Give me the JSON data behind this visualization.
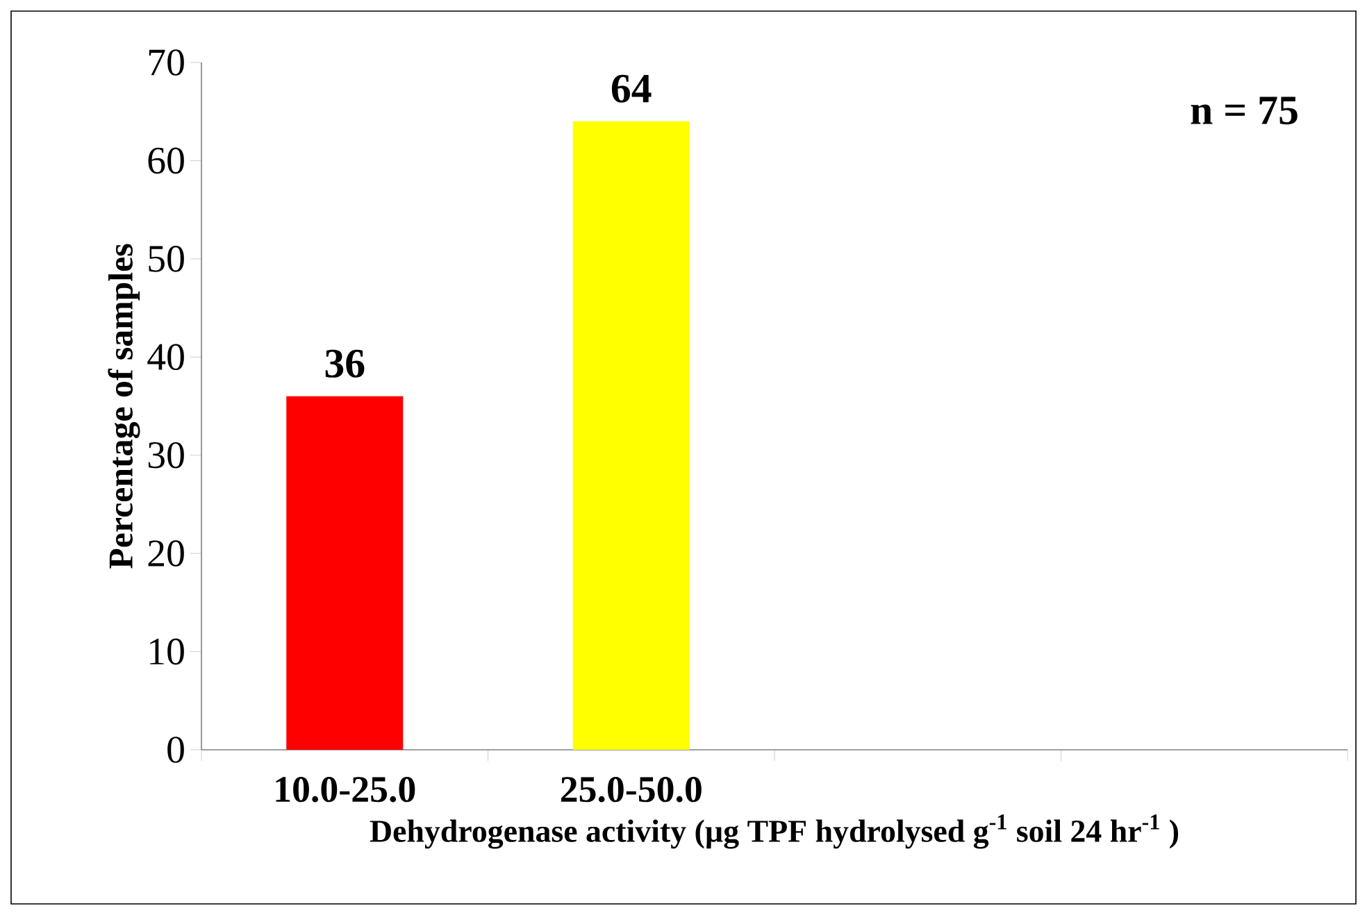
{
  "chart_data": {
    "type": "bar",
    "xlabel": "Dehydrogenase activity (µg TPF hydrolysed g$^{-1}$ soil 24 hr$^{-1}$ )",
    "ylabel": "Percentage of samples",
    "categories": [
      "10.0-25.0",
      "25.0-50.0",
      null,
      null
    ],
    "values": [
      36,
      64,
      null,
      null
    ],
    "colors": [
      "#ff0000",
      "#ffff00",
      null,
      null
    ],
    "ylim": [
      0,
      70
    ],
    "yticks": [
      0,
      10,
      20,
      30,
      40,
      50,
      60,
      70
    ],
    "data_labels": true,
    "grid": false,
    "annotations": [
      "n = 75"
    ]
  }
}
